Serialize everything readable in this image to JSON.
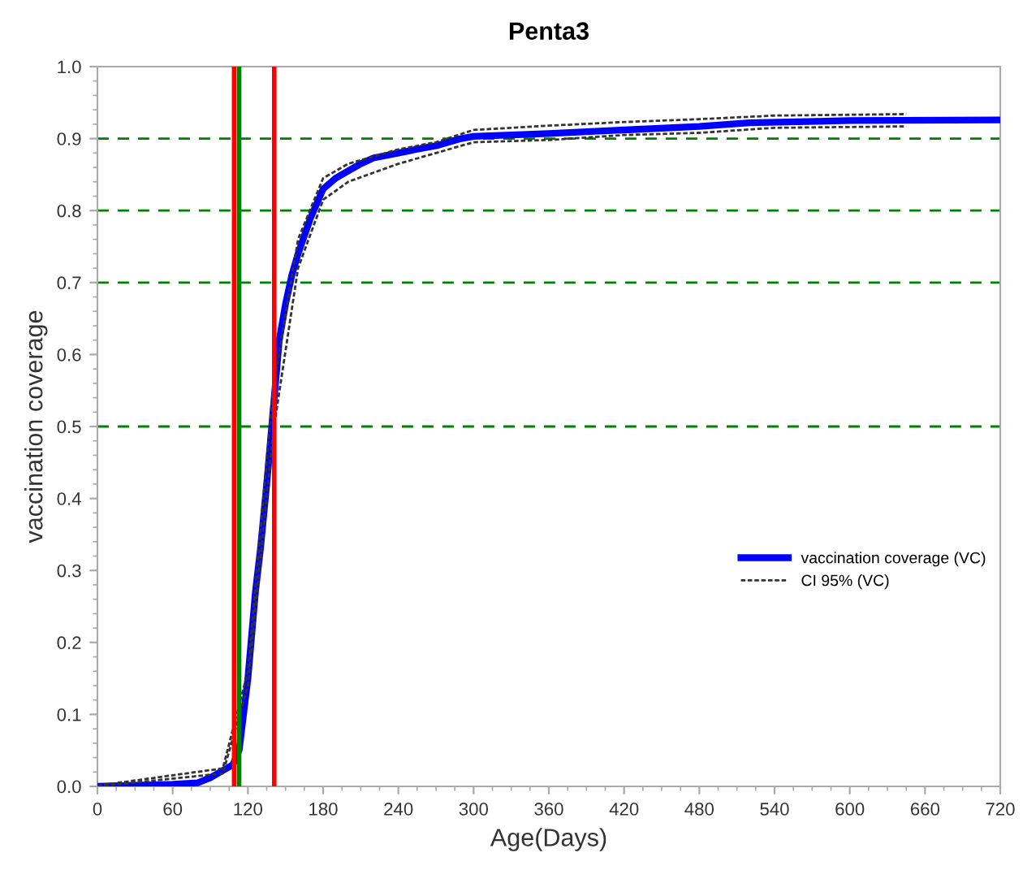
{
  "chart_data": {
    "type": "line",
    "title": "Penta3",
    "xlabel": "Age(Days)",
    "ylabel": "vaccination coverage",
    "xlim": [
      0,
      720
    ],
    "xticks": [
      0,
      60,
      120,
      180,
      240,
      300,
      360,
      420,
      480,
      540,
      600,
      660,
      720
    ],
    "ylim": [
      0,
      1
    ],
    "yticks": [
      {
        "value": 0,
        "label": "0.0"
      },
      0.1,
      0.2,
      0.3,
      0.4,
      0.5,
      0.6,
      0.7,
      0.8,
      0.9,
      {
        "value": 1,
        "label": "1.0"
      }
    ],
    "grid": false,
    "legend": "right",
    "series": [
      {
        "name": "vaccination coverage (VC)",
        "color": "#0000ff",
        "line_style": "solid",
        "x": [
          0,
          60,
          80,
          90,
          100,
          108,
          113,
          120,
          126,
          130,
          135,
          140,
          145,
          150,
          155,
          160,
          170,
          180,
          190,
          200,
          210,
          220,
          240,
          260,
          270,
          290,
          300,
          330,
          360,
          420,
          480,
          520,
          600,
          720
        ],
        "values": [
          0,
          0.003,
          0.005,
          0.012,
          0.022,
          0.03,
          0.05,
          0.15,
          0.27,
          0.33,
          0.42,
          0.52,
          0.62,
          0.67,
          0.71,
          0.74,
          0.79,
          0.83,
          0.845,
          0.855,
          0.865,
          0.873,
          0.88,
          0.887,
          0.89,
          0.9,
          0.903,
          0.905,
          0.907,
          0.912,
          0.917,
          0.922,
          0.925,
          0.926
        ]
      },
      {
        "name": "CI 95% (VC)",
        "color": "#333333",
        "line_style": "dashed",
        "x": [
          0,
          100,
          120,
          140,
          160,
          180,
          200,
          240,
          270,
          300,
          360,
          420,
          480,
          540,
          645
        ],
        "values": [
          0.001,
          0.025,
          0.16,
          0.55,
          0.76,
          0.845,
          0.865,
          0.885,
          0.895,
          0.912,
          0.918,
          0.923,
          0.927,
          0.932,
          0.934
        ]
      },
      {
        "color": "#333333",
        "line_style": "dashed",
        "x": [
          0,
          100,
          120,
          140,
          160,
          180,
          200,
          240,
          270,
          300,
          360,
          420,
          480,
          540,
          645
        ],
        "values": [
          0,
          0.018,
          0.14,
          0.49,
          0.72,
          0.815,
          0.84,
          0.865,
          0.88,
          0.895,
          0.898,
          0.905,
          0.908,
          0.915,
          0.917
        ]
      }
    ],
    "ref_lines": [
      {
        "axis": "y",
        "value": 0.5,
        "color": "#008000",
        "line_style": "dashed"
      },
      {
        "axis": "y",
        "value": 0.7,
        "color": "#008000",
        "line_style": "dashed"
      },
      {
        "axis": "y",
        "value": 0.8,
        "color": "#008000",
        "line_style": "dashed"
      },
      {
        "axis": "y",
        "value": 0.9,
        "color": "#008000",
        "line_style": "dashed"
      },
      {
        "axis": "x",
        "value": 109,
        "color": "#ff0000",
        "line_style": "solid"
      },
      {
        "axis": "x",
        "value": 113,
        "color": "#008000",
        "line_style": "solid"
      },
      {
        "axis": "x",
        "value": 141,
        "color": "#ff0000",
        "line_style": "solid"
      }
    ]
  }
}
